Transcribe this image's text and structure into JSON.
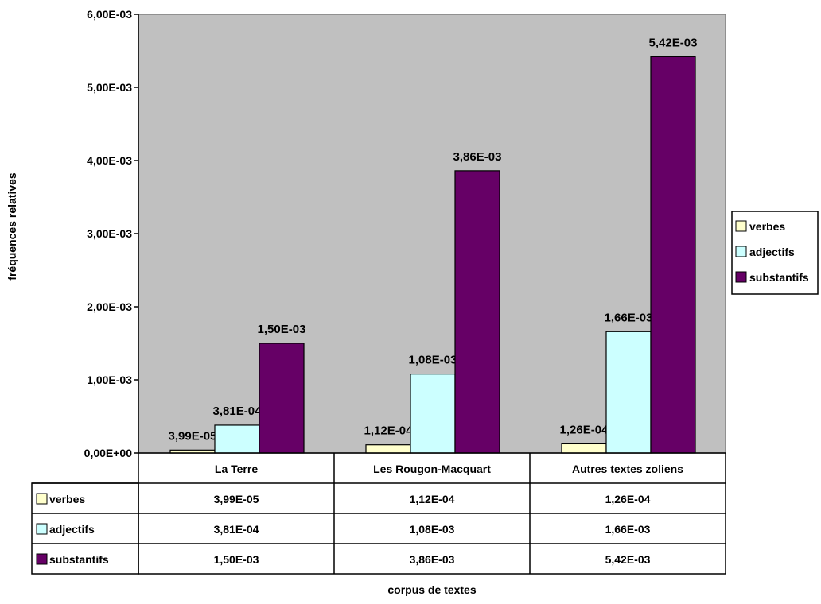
{
  "chart_data": {
    "type": "bar",
    "categories": [
      "La Terre",
      "Les Rougon-Macquart",
      "Autres textes zoliens"
    ],
    "series": [
      {
        "name": "verbes",
        "values": [
          3.99e-05,
          0.000112,
          0.000126
        ],
        "labels": [
          "3,99E-05",
          "1,12E-04",
          "1,26E-04"
        ],
        "color": "#ffffcc"
      },
      {
        "name": "adjectifs",
        "values": [
          0.000381,
          0.00108,
          0.00166
        ],
        "labels": [
          "3,81E-04",
          "1,08E-03",
          "1,66E-03"
        ],
        "color": "#ccffff"
      },
      {
        "name": "substantifs",
        "values": [
          0.0015,
          0.00386,
          0.00542
        ],
        "labels": [
          "1,50E-03",
          "3,86E-03",
          "5,42E-03"
        ],
        "color": "#660066"
      }
    ],
    "ylim": [
      0,
      0.006
    ],
    "yticks": [
      0,
      0.001,
      0.002,
      0.003,
      0.004,
      0.005,
      0.006
    ],
    "ytick_labels": [
      "0,00E+00",
      "1,00E-03",
      "2,00E-03",
      "3,00E-03",
      "4,00E-03",
      "5,00E-03",
      "6,00E-03"
    ],
    "xlabel": "corpus de textes",
    "ylabel": "fréquences relatives",
    "legend": "right",
    "grid": false,
    "data_table": true,
    "plot_background": "#c0c0c0"
  }
}
